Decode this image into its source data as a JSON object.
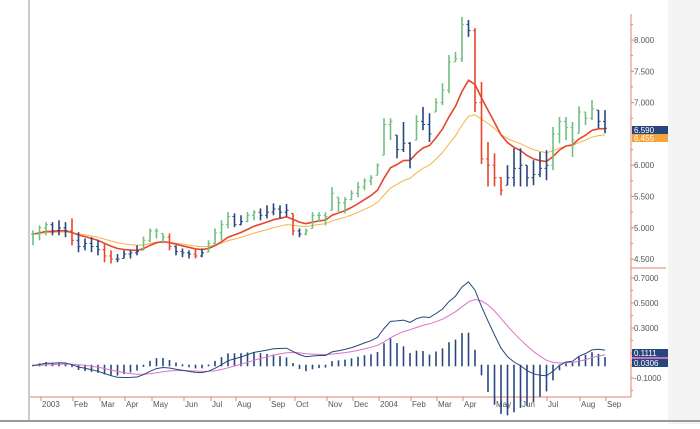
{
  "chart_data": [
    {
      "type": "ohlc",
      "panel": "price",
      "yticks": [
        "8.000",
        "7.500",
        "7.000",
        "6.000",
        "5.500",
        "5.000",
        "4.500"
      ],
      "ytick_values": [
        8.0,
        7.5,
        7.0,
        6.0,
        5.5,
        5.0,
        4.5
      ],
      "ylim": [
        4.4,
        8.4
      ],
      "xticks": [
        "2003",
        "Feb",
        "Mar",
        "Apr",
        "May",
        "Jun",
        "Jul",
        "Aug",
        "Sep",
        "Oct",
        "Nov",
        "Dec",
        "2004",
        "Feb",
        "Mar",
        "Apr",
        "May",
        "Jun",
        "Jul",
        "Aug",
        "Sep"
      ],
      "bar_fields": [
        "high",
        "low",
        "close",
        "color"
      ],
      "bars": [
        [
          4.96,
          4.72,
          4.9,
          "g"
        ],
        [
          5.04,
          4.8,
          5.0,
          "g"
        ],
        [
          5.09,
          4.88,
          5.05,
          "g"
        ],
        [
          5.09,
          4.88,
          4.95,
          "b"
        ],
        [
          5.12,
          4.88,
          5.0,
          "b"
        ],
        [
          5.09,
          4.85,
          4.95,
          "b"
        ],
        [
          5.15,
          4.72,
          4.8,
          "r"
        ],
        [
          4.93,
          4.61,
          4.7,
          "b"
        ],
        [
          4.83,
          4.64,
          4.75,
          "b"
        ],
        [
          4.85,
          4.61,
          4.7,
          "b"
        ],
        [
          4.8,
          4.56,
          4.65,
          "b"
        ],
        [
          4.75,
          4.45,
          4.55,
          "r"
        ],
        [
          4.64,
          4.43,
          4.5,
          "r"
        ],
        [
          4.58,
          4.45,
          4.5,
          "b"
        ],
        [
          4.64,
          4.51,
          4.58,
          "b"
        ],
        [
          4.64,
          4.51,
          4.6,
          "b"
        ],
        [
          4.72,
          4.56,
          4.62,
          "b"
        ],
        [
          4.86,
          4.64,
          4.8,
          "g"
        ],
        [
          4.99,
          4.77,
          4.95,
          "g"
        ],
        [
          4.99,
          4.83,
          4.95,
          "g"
        ],
        [
          4.91,
          4.75,
          4.85,
          "g"
        ],
        [
          4.91,
          4.64,
          4.7,
          "r"
        ],
        [
          4.72,
          4.56,
          4.62,
          "b"
        ],
        [
          4.67,
          4.53,
          4.6,
          "b"
        ],
        [
          4.64,
          4.51,
          4.58,
          "b"
        ],
        [
          4.67,
          4.51,
          4.55,
          "r"
        ],
        [
          4.67,
          4.53,
          4.6,
          "b"
        ],
        [
          4.8,
          4.61,
          4.75,
          "g"
        ],
        [
          4.99,
          4.72,
          4.92,
          "g"
        ],
        [
          5.12,
          4.8,
          5.05,
          "g"
        ],
        [
          5.25,
          4.99,
          5.18,
          "g"
        ],
        [
          5.23,
          5.01,
          5.05,
          "b"
        ],
        [
          5.2,
          5.04,
          5.1,
          "b"
        ],
        [
          5.25,
          5.09,
          5.2,
          "g"
        ],
        [
          5.28,
          5.12,
          5.25,
          "g"
        ],
        [
          5.31,
          5.12,
          5.2,
          "b"
        ],
        [
          5.36,
          5.15,
          5.25,
          "b"
        ],
        [
          5.39,
          5.2,
          5.3,
          "b"
        ],
        [
          5.36,
          5.15,
          5.25,
          "b"
        ],
        [
          5.38,
          5.18,
          5.28,
          "b"
        ],
        [
          5.23,
          4.88,
          4.95,
          "r"
        ],
        [
          4.99,
          4.85,
          4.9,
          "b"
        ],
        [
          4.99,
          4.88,
          4.95,
          "g"
        ],
        [
          5.25,
          4.99,
          5.2,
          "g"
        ],
        [
          5.25,
          5.09,
          5.2,
          "g"
        ],
        [
          5.25,
          5.04,
          5.18,
          "g"
        ],
        [
          5.65,
          5.28,
          5.55,
          "g"
        ],
        [
          5.49,
          5.23,
          5.4,
          "g"
        ],
        [
          5.49,
          5.23,
          5.45,
          "g"
        ],
        [
          5.6,
          5.44,
          5.55,
          "g"
        ],
        [
          5.73,
          5.49,
          5.65,
          "g"
        ],
        [
          5.79,
          5.6,
          5.75,
          "g"
        ],
        [
          5.84,
          5.68,
          5.8,
          "g"
        ],
        [
          6.03,
          5.84,
          6.0,
          "g"
        ],
        [
          6.75,
          6.16,
          6.65,
          "g"
        ],
        [
          6.75,
          6.4,
          6.7,
          "g"
        ],
        [
          6.48,
          6.11,
          6.25,
          "b"
        ],
        [
          6.69,
          6.21,
          6.35,
          "b"
        ],
        [
          6.37,
          5.95,
          6.1,
          "b"
        ],
        [
          6.8,
          6.4,
          6.7,
          "g"
        ],
        [
          6.93,
          6.56,
          6.65,
          "b"
        ],
        [
          6.83,
          6.37,
          6.5,
          "b"
        ],
        [
          7.07,
          6.85,
          7.0,
          "g"
        ],
        [
          7.31,
          6.96,
          7.2,
          "g"
        ],
        [
          7.76,
          7.15,
          7.65,
          "g"
        ],
        [
          7.81,
          7.65,
          7.7,
          "g"
        ],
        [
          8.37,
          7.65,
          8.25,
          "g"
        ],
        [
          8.32,
          8.05,
          8.15,
          "b"
        ],
        [
          8.19,
          6.85,
          7.0,
          "r"
        ],
        [
          7.33,
          6.02,
          6.1,
          "r"
        ],
        [
          6.37,
          5.66,
          6.0,
          "r"
        ],
        [
          6.19,
          5.66,
          5.8,
          "r"
        ],
        [
          5.81,
          5.52,
          5.6,
          "r"
        ],
        [
          6.0,
          5.68,
          5.8,
          "b"
        ],
        [
          6.27,
          5.66,
          5.95,
          "b"
        ],
        [
          6.27,
          5.66,
          6.0,
          "b"
        ],
        [
          6.0,
          5.66,
          5.8,
          "b"
        ],
        [
          6.08,
          5.68,
          5.85,
          "b"
        ],
        [
          6.21,
          5.81,
          5.95,
          "b"
        ],
        [
          6.24,
          5.76,
          6.0,
          "b"
        ],
        [
          6.61,
          5.92,
          6.5,
          "g"
        ],
        [
          6.77,
          6.35,
          6.7,
          "g"
        ],
        [
          6.77,
          6.4,
          6.6,
          "g"
        ],
        [
          6.69,
          6.13,
          6.4,
          "g"
        ],
        [
          6.94,
          6.51,
          6.85,
          "g"
        ],
        [
          6.85,
          6.64,
          6.75,
          "g"
        ],
        [
          7.04,
          6.72,
          6.9,
          "g"
        ],
        [
          6.88,
          6.59,
          6.7,
          "b"
        ],
        [
          6.88,
          6.51,
          6.59,
          "b"
        ]
      ],
      "moving_averages": [
        {
          "color": "#e8452c",
          "last_label": "6.590"
        },
        {
          "color": "#f5b24a",
          "last_label": "6.455"
        }
      ]
    },
    {
      "type": "macd",
      "panel": "indicator",
      "yticks": [
        "0.7000",
        "0.5000",
        "0.3000",
        "-0.1000"
      ],
      "ytick_values": [
        0.7,
        0.5,
        0.3,
        -0.1
      ],
      "ylim": [
        -0.25,
        0.8
      ],
      "last_labels": {
        "macd": "0.1111",
        "histogram": "0.0306"
      }
    }
  ],
  "colors": {
    "g": "#6fbf7f",
    "b": "#27467d",
    "r": "#e8452c",
    "axis": "#e8806e",
    "macd": "#27467d",
    "signal": "#d873c9",
    "hist": "#27467d",
    "label_blue": "#27467d",
    "label_orange": "#f5a43a",
    "label_pink": "#c86fc0"
  }
}
